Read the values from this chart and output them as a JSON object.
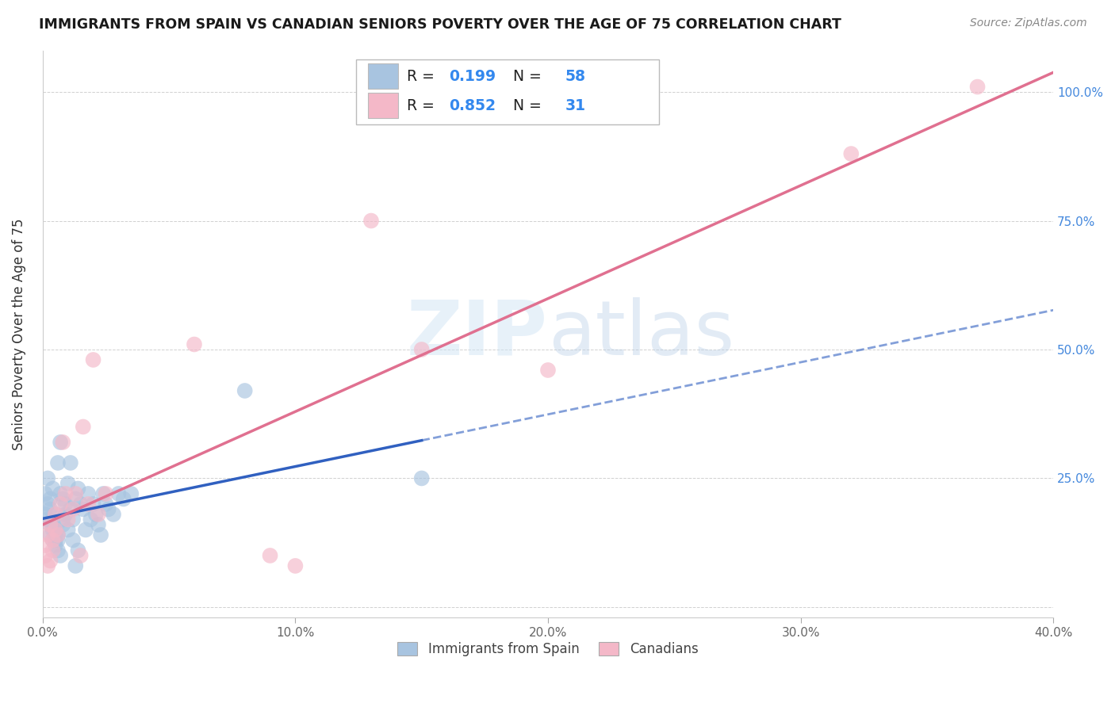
{
  "title": "IMMIGRANTS FROM SPAIN VS CANADIAN SENIORS POVERTY OVER THE AGE OF 75 CORRELATION CHART",
  "source": "Source: ZipAtlas.com",
  "ylabel": "Seniors Poverty Over the Age of 75",
  "xlim": [
    0.0,
    0.4
  ],
  "ylim": [
    -0.02,
    1.08
  ],
  "blue_r": 0.199,
  "blue_n": 58,
  "pink_r": 0.852,
  "pink_n": 31,
  "blue_color": "#a8c4e0",
  "pink_color": "#f4b8c8",
  "blue_line_color": "#3060c0",
  "pink_line_color": "#e07090",
  "legend_label_blue": "Immigrants from Spain",
  "legend_label_pink": "Canadians",
  "blue_scatter_x": [
    0.001,
    0.001,
    0.002,
    0.002,
    0.002,
    0.003,
    0.003,
    0.003,
    0.003,
    0.004,
    0.004,
    0.004,
    0.004,
    0.005,
    0.005,
    0.005,
    0.005,
    0.005,
    0.006,
    0.006,
    0.006,
    0.006,
    0.007,
    0.007,
    0.007,
    0.008,
    0.008,
    0.008,
    0.009,
    0.009,
    0.01,
    0.01,
    0.011,
    0.011,
    0.012,
    0.012,
    0.013,
    0.013,
    0.014,
    0.014,
    0.015,
    0.016,
    0.017,
    0.018,
    0.019,
    0.02,
    0.021,
    0.022,
    0.023,
    0.024,
    0.025,
    0.026,
    0.028,
    0.03,
    0.032,
    0.035,
    0.08,
    0.15
  ],
  "blue_scatter_y": [
    0.18,
    0.22,
    0.2,
    0.17,
    0.25,
    0.16,
    0.21,
    0.14,
    0.19,
    0.16,
    0.15,
    0.23,
    0.13,
    0.13,
    0.15,
    0.14,
    0.18,
    0.12,
    0.14,
    0.13,
    0.28,
    0.11,
    0.32,
    0.22,
    0.1,
    0.16,
    0.17,
    0.21,
    0.2,
    0.18,
    0.15,
    0.24,
    0.19,
    0.28,
    0.17,
    0.13,
    0.08,
    0.21,
    0.11,
    0.23,
    0.2,
    0.19,
    0.15,
    0.22,
    0.17,
    0.2,
    0.18,
    0.16,
    0.14,
    0.22,
    0.2,
    0.19,
    0.18,
    0.22,
    0.21,
    0.22,
    0.42,
    0.25
  ],
  "pink_scatter_x": [
    0.001,
    0.001,
    0.002,
    0.002,
    0.003,
    0.003,
    0.004,
    0.004,
    0.005,
    0.005,
    0.006,
    0.007,
    0.008,
    0.009,
    0.01,
    0.012,
    0.013,
    0.015,
    0.016,
    0.018,
    0.02,
    0.022,
    0.025,
    0.06,
    0.09,
    0.1,
    0.13,
    0.15,
    0.2,
    0.32,
    0.37
  ],
  "pink_scatter_y": [
    0.1,
    0.12,
    0.08,
    0.14,
    0.09,
    0.16,
    0.13,
    0.11,
    0.15,
    0.18,
    0.14,
    0.2,
    0.32,
    0.22,
    0.17,
    0.19,
    0.22,
    0.1,
    0.35,
    0.2,
    0.48,
    0.18,
    0.22,
    0.51,
    0.1,
    0.08,
    0.75,
    0.5,
    0.46,
    0.88,
    1.01
  ]
}
